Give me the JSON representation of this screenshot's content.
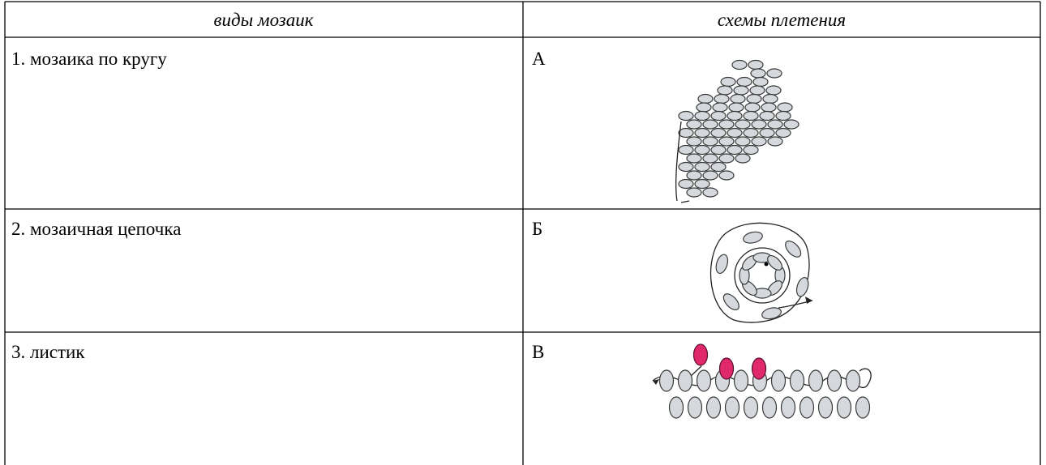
{
  "table": {
    "header": [
      "виды мозаик",
      "схемы плетения"
    ],
    "rows": [
      [
        "1. мозаика по кругу",
        "А"
      ],
      [
        "2. мозаичная цепочка",
        "Б"
      ],
      [
        "3. листик",
        "В"
      ]
    ]
  }
}
